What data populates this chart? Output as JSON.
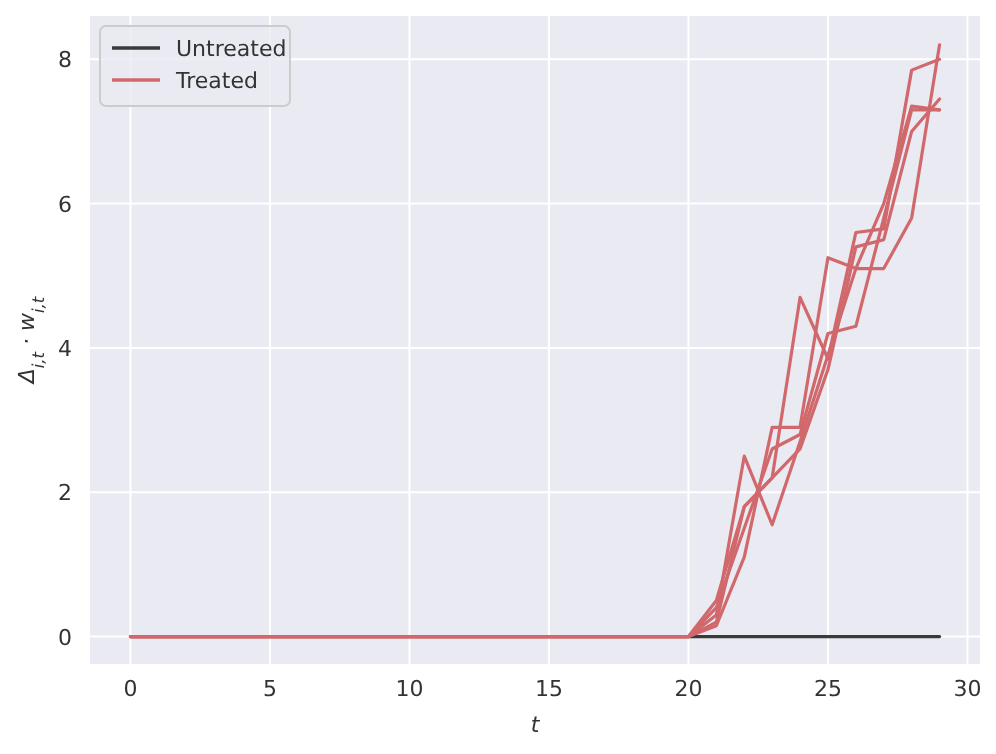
{
  "chart_data": {
    "type": "line",
    "xlabel": "t",
    "ylabel": "Δ$_{i,t}$ · w$_{i,t}$",
    "x": [
      0,
      1,
      2,
      3,
      4,
      5,
      6,
      7,
      8,
      9,
      10,
      11,
      12,
      13,
      14,
      15,
      16,
      17,
      18,
      19,
      20,
      21,
      22,
      23,
      24,
      25,
      26,
      27,
      28,
      29
    ],
    "xlim": [
      -1.45,
      30.45
    ],
    "xticks": [
      0,
      5,
      10,
      15,
      20,
      25,
      30
    ],
    "ylim": [
      -0.38,
      8.6
    ],
    "yticks": [
      0,
      2,
      4,
      6,
      8
    ],
    "grid": true,
    "legend": "top left",
    "line_style": "solid",
    "series": [
      {
        "name": "Untreated",
        "color": "#3a3a3a",
        "values": [
          null,
          null,
          null,
          null,
          null,
          null,
          null,
          null,
          null,
          null,
          null,
          null,
          null,
          null,
          null,
          null,
          null,
          null,
          null,
          null,
          0,
          0,
          0,
          0,
          0,
          0,
          0,
          0,
          0,
          0
        ]
      },
      {
        "name": "Treated",
        "color": "#d0686c",
        "values": [
          0,
          0,
          0,
          0,
          0,
          0,
          0,
          0,
          0,
          0,
          0,
          0,
          0,
          0,
          0,
          0,
          0,
          0,
          0,
          0,
          0,
          0.3,
          2.5,
          1.55,
          2.7,
          3.9,
          5.1,
          5.1,
          5.8,
          8.2
        ]
      },
      {
        "color": "#d0686c",
        "values": [
          0,
          0,
          0,
          0,
          0,
          0,
          0,
          0,
          0,
          0,
          0,
          0,
          0,
          0,
          0,
          0,
          0,
          0,
          0,
          0,
          0,
          0.2,
          1.8,
          2.2,
          4.7,
          3.85,
          5.6,
          5.65,
          7.85,
          8.0
        ]
      },
      {
        "color": "#d0686c",
        "values": [
          0,
          0,
          0,
          0,
          0,
          0,
          0,
          0,
          0,
          0,
          0,
          0,
          0,
          0,
          0,
          0,
          0,
          0,
          0,
          0,
          0,
          0.15,
          1.1,
          2.9,
          2.9,
          5.25,
          5.1,
          6.0,
          7.35,
          7.3
        ]
      },
      {
        "color": "#d0686c",
        "values": [
          0,
          0,
          0,
          0,
          0,
          0,
          0,
          0,
          0,
          0,
          0,
          0,
          0,
          0,
          0,
          0,
          0,
          0,
          0,
          0,
          0,
          0.4,
          1.5,
          2.6,
          2.8,
          4.2,
          4.3,
          5.8,
          7.3,
          7.3
        ]
      },
      {
        "color": "#d0686c",
        "values": [
          0,
          0,
          0,
          0,
          0,
          0,
          0,
          0,
          0,
          0,
          0,
          0,
          0,
          0,
          0,
          0,
          0,
          0,
          0,
          0,
          0,
          0.5,
          1.8,
          2.2,
          2.6,
          3.7,
          5.4,
          5.5,
          7.0,
          7.45
        ]
      }
    ]
  }
}
